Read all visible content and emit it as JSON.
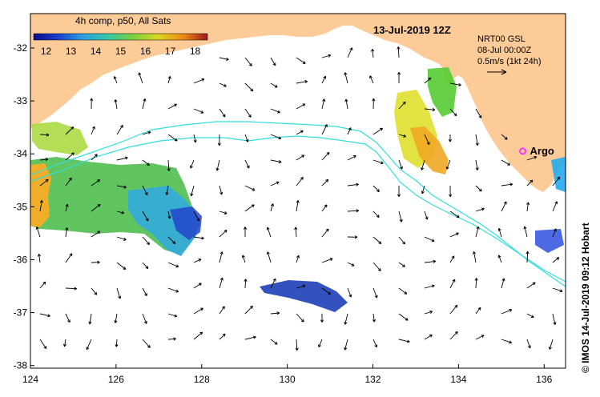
{
  "header": {
    "colorbar_title": "4h comp, p50, All Sats",
    "date_title": "13-Jul-2019 12Z",
    "product": "NRT00 GSL",
    "product_date": "08-Jul 00:00Z",
    "vector_scale": "0.5m/s (1kt 24h)",
    "argo_label": "Argo"
  },
  "credit": "© IMOS 14-Jul-2019 09:12 Hobart",
  "colorbar": {
    "min": 11.5,
    "max": 18.5,
    "ticks": [
      "12",
      "13",
      "14",
      "15",
      "16",
      "17",
      "18"
    ],
    "tick_values": [
      12,
      13,
      14,
      15,
      16,
      17,
      18
    ]
  },
  "axes": {
    "x_ticks": [
      "124",
      "126",
      "128",
      "130",
      "132",
      "134",
      "136"
    ],
    "x_values": [
      124,
      126,
      128,
      130,
      132,
      134,
      136
    ],
    "y_ticks": [
      "-32",
      "-33",
      "-34",
      "-35",
      "-36",
      "-37",
      "-38"
    ],
    "y_values": [
      -32,
      -33,
      -34,
      -35,
      -36,
      -37,
      -38
    ],
    "lon_range": [
      124,
      136.5
    ],
    "lat_range": [
      -38.05,
      -31.35
    ]
  },
  "argo": {
    "lon": 135.5,
    "lat": -33.95,
    "color": "#ff33ff"
  },
  "colors": {
    "land": "#fdcb97",
    "contour": "#33dddd",
    "vector": "#000000"
  }
}
